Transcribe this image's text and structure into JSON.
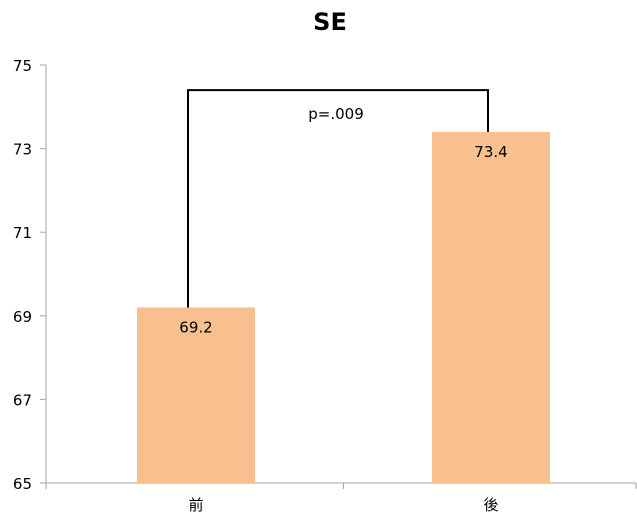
{
  "chart_data": {
    "type": "bar",
    "title": "SE",
    "categories": [
      "前",
      "後"
    ],
    "values": [
      69.2,
      73.4
    ],
    "data_labels": [
      "69.2",
      "73.4"
    ],
    "ylim": [
      65,
      75
    ],
    "yticks": [
      65,
      67,
      69,
      71,
      73,
      75
    ],
    "ytick_labels": [
      "65",
      "67",
      "69",
      "71",
      "73",
      "75"
    ],
    "xlabel": "",
    "ylabel": "",
    "grid": false,
    "legend": "none",
    "bar_color": "#F8C08E",
    "axis_color": "#A6A6A6",
    "annotation": {
      "text": "p=.009",
      "bracket_top_value": 74.4
    }
  }
}
